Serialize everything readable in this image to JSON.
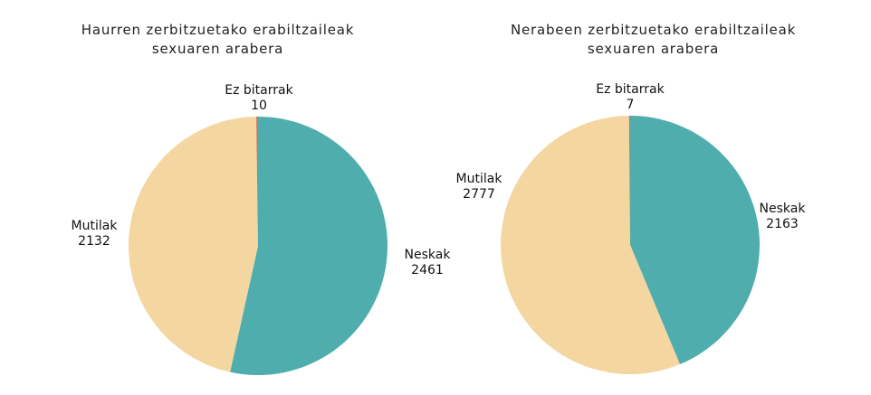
{
  "chart_data": [
    {
      "type": "pie",
      "title_lines": [
        "Haurren zerbitzuetako erabiltzaileak",
        "sexuaren arabera"
      ],
      "slices": [
        {
          "label": "Neskak",
          "value": 2461,
          "color": "#4fadad"
        },
        {
          "label": "Mutilak",
          "value": 2132,
          "color": "#f4d6a0"
        },
        {
          "label": "Ez bitarrak",
          "value": 10,
          "color": "#e06c5a"
        }
      ],
      "start_angle_deg": 0,
      "direction": "clockwise"
    },
    {
      "type": "pie",
      "title_lines": [
        "Nerabeen zerbitzuetako erabiltzaileak",
        "sexuaren arabera"
      ],
      "slices": [
        {
          "label": "Neskak",
          "value": 2163,
          "color": "#4fadad"
        },
        {
          "label": "Mutilak",
          "value": 2777,
          "color": "#f4d6a0"
        },
        {
          "label": "Ez bitarrak",
          "value": 7,
          "color": "#e06c5a"
        }
      ],
      "start_angle_deg": 0,
      "direction": "clockwise"
    }
  ]
}
